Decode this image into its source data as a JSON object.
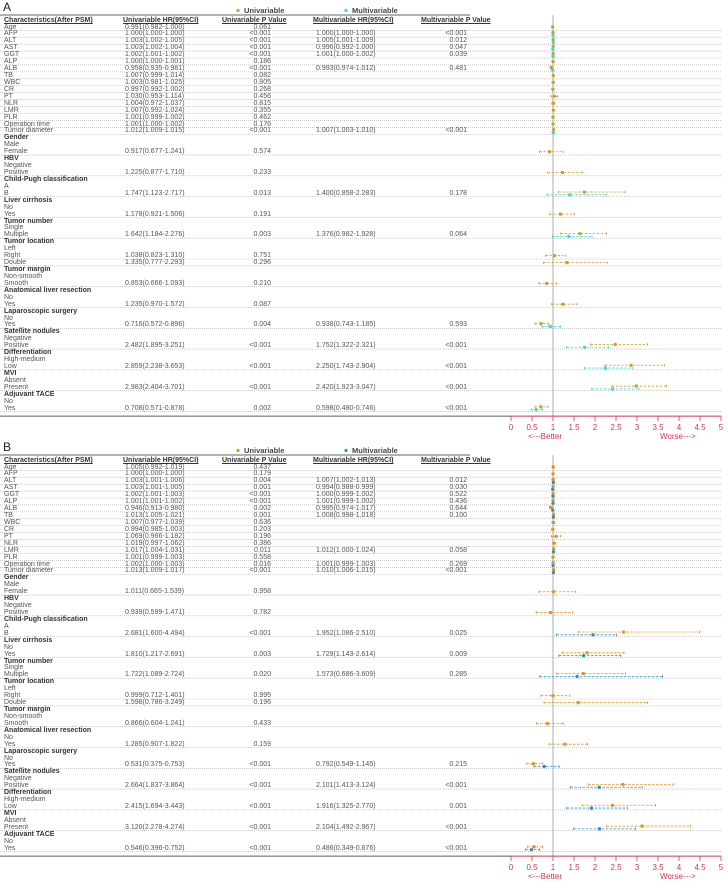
{
  "chart_data": {
    "type": "forest",
    "xlim": [
      0,
      5
    ],
    "x_ticks": [
      "0",
      "0.5",
      "1",
      "1.5",
      "2",
      "2.5",
      "3",
      "3.5",
      "4",
      "4.5",
      "5"
    ],
    "reference_line": 1,
    "better_label": "<---Better",
    "worse_label": "Worse--->",
    "legend": {
      "univariable": "Univariable",
      "multivariable": "Multivariable"
    },
    "columns": [
      "Characteristics(After PSM)",
      "Univariable HR(95%CI)",
      "Univariable P Value",
      "Multivariable HR(95%CI)",
      "Multivariable P Value"
    ],
    "axis_color": "#d0384d",
    "panels": [
      {
        "label": "A",
        "colors": {
          "univariable": "#c9a227",
          "multivariable": "#3ed8d8"
        },
        "rows": [
          {
            "label": "Age",
            "uni": "0.991(0.982-1.000)",
            "up": "0.061"
          },
          {
            "label": "AFP",
            "uni": "1.000(1.000-1.000)",
            "up": "<0.001",
            "multi": "1.000(1.000-1.000)",
            "mp": "<0.001"
          },
          {
            "label": "ALT",
            "uni": "1.003(1.002-1.005)",
            "up": "<0.001",
            "multi": "1.005(1.001-1.009)",
            "mp": "0.012"
          },
          {
            "label": "AST",
            "uni": "1.003(1.002-1.004)",
            "up": "<0.001",
            "multi": "0.996(0.992-1.000)",
            "mp": "0.047"
          },
          {
            "label": "GGT",
            "uni": "1.002(1.001-1.002)",
            "up": "<0.001",
            "multi": "1.001(1.000-1.002)",
            "mp": "0.039"
          },
          {
            "label": "ALP",
            "uni": "1.000(1.000-1.001)",
            "up": "0.186"
          },
          {
            "label": "ALB",
            "uni": "0.958(0.935-0.981)",
            "up": "<0.001",
            "multi": "0.993(0.974-1.012)",
            "mp": "0.481"
          },
          {
            "label": "TB",
            "uni": "1.007(0.999-1.014)",
            "up": "0.082"
          },
          {
            "label": "WBC",
            "uni": "1.003(0.981-1.025)",
            "up": "0.805"
          },
          {
            "label": "CR",
            "uni": "0.997(0.992-1.002)",
            "up": "0.268"
          },
          {
            "label": "PT",
            "uni": "1.030(0.953-1.114)",
            "up": "0.456"
          },
          {
            "label": "NLR",
            "uni": "1.004(0.972-1.037)",
            "up": "0.815"
          },
          {
            "label": "LMR",
            "uni": "1.007(0.992-1.024)",
            "up": "0.355"
          },
          {
            "label": "PLR",
            "uni": "1.001(0.999-1.002)",
            "up": "0.462"
          },
          {
            "label": "Operation time",
            "uni": "1.001(1.000-1.002)",
            "up": "0.176"
          },
          {
            "label": "Tumor diameter",
            "uni": "1.012(1.009-1.015)",
            "up": "<0.001",
            "multi": "1.007(1.003-1.010)",
            "mp": "<0.001"
          },
          {
            "label": "Gender",
            "group": true
          },
          {
            "label": "Male"
          },
          {
            "label": "Female",
            "uni": "0.917(0.677-1.241)",
            "up": "0.574"
          },
          {
            "label": "HBV",
            "group": true
          },
          {
            "label": "Negative"
          },
          {
            "label": "Positive",
            "uni": "1.225(0.877-1.710)",
            "up": "0.233"
          },
          {
            "label": "Child-Pugh classification",
            "group": true
          },
          {
            "label": "A"
          },
          {
            "label": "B",
            "uni": "1.747(1.123-2.717)",
            "up": "0.013",
            "multi": "1.400(0.858-2.283)",
            "mp": "0.178"
          },
          {
            "label": "Liver cirrhosis",
            "group": true
          },
          {
            "label": "No"
          },
          {
            "label": "Yes",
            "uni": "1.178(0.921-1.506)",
            "up": "0.191"
          },
          {
            "label": "Tumor number",
            "group": true
          },
          {
            "label": "Single"
          },
          {
            "label": "Multiple",
            "uni": "1.642(1.184-2.276)",
            "up": "0.003",
            "multi": "1.376(0.982-1.928)",
            "mp": "0.064"
          },
          {
            "label": "Tumor location",
            "group": true
          },
          {
            "label": "Left"
          },
          {
            "label": "Right",
            "uni": "1.038(0.823-1.310)",
            "up": "0.751"
          },
          {
            "label": "Double",
            "uni": "1.335(0.777-2.293)",
            "up": "0.296"
          },
          {
            "label": "Tumor margin",
            "group": true
          },
          {
            "label": "Non-smooth"
          },
          {
            "label": "Smooth",
            "uni": "0.853(0.666-1.093)",
            "up": "0.210"
          },
          {
            "label": "Anatomical liver resection",
            "group": true
          },
          {
            "label": "No"
          },
          {
            "label": "Yes",
            "uni": "1.235(0.970-1.572)",
            "up": "0.087"
          },
          {
            "label": "Laparoscopic surgery",
            "group": true
          },
          {
            "label": "No"
          },
          {
            "label": "Yes",
            "uni": "0.716(0.572-0.896)",
            "up": "0.004",
            "multi": "0.938(0.743-1.185)",
            "mp": "0.593"
          },
          {
            "label": "Satellite nodules",
            "group": true
          },
          {
            "label": "Negative"
          },
          {
            "label": "Positive",
            "uni": "2.482(1.895-3.251)",
            "up": "<0.001",
            "multi": "1.752(1.322-2.321)",
            "mp": "<0.001"
          },
          {
            "label": "Differentiation",
            "group": true
          },
          {
            "label": "High-medium"
          },
          {
            "label": "Low",
            "uni": "2.859(2.238-3.653)",
            "up": "<0.001",
            "multi": "2.250(1.743-2.904)",
            "mp": "<0.001"
          },
          {
            "label": "MVI",
            "group": true
          },
          {
            "label": "Absent"
          },
          {
            "label": "Present",
            "uni": "2.983(2.404-3.701)",
            "up": "<0.001",
            "multi": "2.420(1.923-3.047)",
            "mp": "<0.001"
          },
          {
            "label": "Adjuvant TACE",
            "group": true
          },
          {
            "label": "No"
          },
          {
            "label": "Yes",
            "uni": "0.708(0.571-0.878)",
            "up": "0.002",
            "multi": "0.598(0.480-0.746)",
            "mp": "<0.001"
          }
        ]
      },
      {
        "label": "B",
        "colors": {
          "univariable": "#e8921e",
          "multivariable": "#2b93c9"
        },
        "rows": [
          {
            "label": "Age",
            "uni": "1.005(0.992-1.019)",
            "up": "0.437"
          },
          {
            "label": "AFP",
            "uni": "1.000(1.000-1.000)",
            "up": "0.179"
          },
          {
            "label": "ALT",
            "uni": "1.003(1.001-1.006)",
            "up": "0.004",
            "multi": "1.007(1.002-1.013)",
            "mp": "0.012"
          },
          {
            "label": "AST",
            "uni": "1.003(1.001-1.005)",
            "up": "0.001",
            "multi": "0.994(0.988-0.999)",
            "mp": "0.030"
          },
          {
            "label": "GGT",
            "uni": "1.002(1.001-1.003)",
            "up": "<0.001",
            "multi": "1.000(0.999-1.002)",
            "mp": "0.522"
          },
          {
            "label": "ALP",
            "uni": "1.001(1.001-1.002)",
            "up": "<0.001",
            "multi": "1.001(0.999-1.002)",
            "mp": "0.436"
          },
          {
            "label": "ALB",
            "uni": "0.946(0.913-0.980)",
            "up": "0.002",
            "multi": "0.995(0.974-1.017)",
            "mp": "0.644"
          },
          {
            "label": "TB",
            "uni": "1.013(1.005-1.021)",
            "up": "0.001",
            "multi": "1.008(0.998-1.018)",
            "mp": "0.100"
          },
          {
            "label": "WBC",
            "uni": "1.007(0.977-1.039)",
            "up": "0.636"
          },
          {
            "label": "CR",
            "uni": "0.994(0.985-1.003)",
            "up": "0.203"
          },
          {
            "label": "PT",
            "uni": "1.069(0.966-1.182)",
            "up": "0.196"
          },
          {
            "label": "NLR",
            "uni": "1.019(0.997-1.062)",
            "up": "0.386"
          },
          {
            "label": "LMR",
            "uni": "1.017(1.004-1.031)",
            "up": "0.011",
            "multi": "1.012(1.000-1.024)",
            "mp": "0.058"
          },
          {
            "label": "PLR",
            "uni": "1.001(0.999-1.003)",
            "up": "0.558"
          },
          {
            "label": "Operation time",
            "uni": "1.002(1.000-1.003)",
            "up": "0.016",
            "multi": "1.001(0.999-1.003)",
            "mp": "0.269"
          },
          {
            "label": "Tumor diameter",
            "uni": "1.013(1.009-1.017)",
            "up": "<0.001",
            "multi": "1.010(1.006-1.015)",
            "mp": "<0.001"
          },
          {
            "label": "Gender",
            "group": true
          },
          {
            "label": "Male"
          },
          {
            "label": "Female",
            "uni": "1.011(0.665-1.539)",
            "up": "0.958"
          },
          {
            "label": "HBV",
            "group": true
          },
          {
            "label": "Negative"
          },
          {
            "label": "Positive",
            "uni": "0.939(0.599-1.471)",
            "up": "0.782"
          },
          {
            "label": "Child-Pugh classification",
            "group": true
          },
          {
            "label": "A"
          },
          {
            "label": "B",
            "uni": "2.681(1.600-4.494)",
            "up": "<0.001",
            "multi": "1.952(1.086-2.510)",
            "mp": "0.025"
          },
          {
            "label": "Liver cirrhosis",
            "group": true
          },
          {
            "label": "No"
          },
          {
            "label": "Yes",
            "uni": "1.810(1.217-2.691)",
            "up": "0.003",
            "multi": "1.729(1.143-2.614)",
            "mp": "0.009"
          },
          {
            "label": "Tumor number",
            "group": true
          },
          {
            "label": "Single"
          },
          {
            "label": "Multiple",
            "uni": "1.722(1.089-2.724)",
            "up": "0.020",
            "multi": "1.573(0.686-3.609)",
            "mp": "0.285"
          },
          {
            "label": "Tumor location",
            "group": true
          },
          {
            "label": "Left"
          },
          {
            "label": "Right",
            "uni": "0.999(0.712-1.401)",
            "up": "0.995"
          },
          {
            "label": "Double",
            "uni": "1.598(0.786-3.249)",
            "up": "0.196"
          },
          {
            "label": "Tumor margin",
            "group": true
          },
          {
            "label": "Non-smooth"
          },
          {
            "label": "Smooth",
            "uni": "0.866(0.604-1.241)",
            "up": "0.433"
          },
          {
            "label": "Anatomical liver resection",
            "group": true
          },
          {
            "label": "No"
          },
          {
            "label": "Yes",
            "uni": "1.285(0.907-1.822)",
            "up": "0.159"
          },
          {
            "label": "Laparoscopic surgery",
            "group": true
          },
          {
            "label": "No"
          },
          {
            "label": "Yes",
            "uni": "0.531(0.375-0.753)",
            "up": "<0.001",
            "multi": "0.792(0.549-1.145)",
            "mp": "0.215"
          },
          {
            "label": "Satellite nodules",
            "group": true
          },
          {
            "label": "Negative"
          },
          {
            "label": "Positive",
            "uni": "2.664(1.837-3.864)",
            "up": "<0.001",
            "multi": "2.101(1.413-3.124)",
            "mp": "<0.001"
          },
          {
            "label": "Differentiation",
            "group": true
          },
          {
            "label": "High-medium"
          },
          {
            "label": "Low",
            "uni": "2.415(1.694-3.443)",
            "up": "<0.001",
            "multi": "1.916(1.325-2.770)",
            "mp": "0.001"
          },
          {
            "label": "MVI",
            "group": true
          },
          {
            "label": "Absent"
          },
          {
            "label": "Present",
            "uni": "3.120(2.278-4.274)",
            "up": "<0.001",
            "multi": "2.104(1.492-2.967)",
            "mp": "<0.001"
          },
          {
            "label": "Adjuvant TACE",
            "group": true
          },
          {
            "label": "No"
          },
          {
            "label": "Yes",
            "uni": "0.546(0.396-0.752)",
            "up": "<0.001",
            "multi": "0.486(0.349-0.676)",
            "mp": "<0.001"
          }
        ]
      }
    ]
  }
}
